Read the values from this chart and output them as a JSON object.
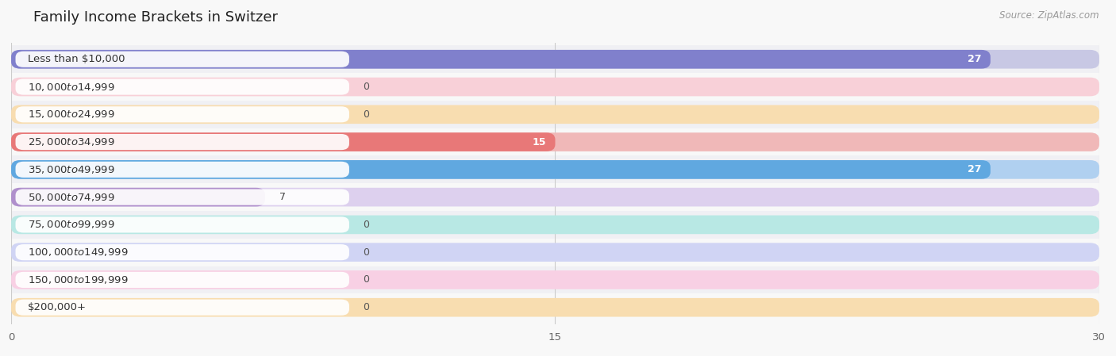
{
  "title": "Family Income Brackets in Switzer",
  "source": "Source: ZipAtlas.com",
  "categories": [
    "Less than $10,000",
    "$10,000 to $14,999",
    "$15,000 to $24,999",
    "$25,000 to $34,999",
    "$35,000 to $49,999",
    "$50,000 to $74,999",
    "$75,000 to $99,999",
    "$100,000 to $149,999",
    "$150,000 to $199,999",
    "$200,000+"
  ],
  "values": [
    27,
    0,
    0,
    15,
    27,
    7,
    0,
    0,
    0,
    0
  ],
  "bar_colors": [
    "#8080cc",
    "#f09090",
    "#f0b870",
    "#e87878",
    "#60a8e0",
    "#b090cc",
    "#70c8c0",
    "#a0a8e8",
    "#f090b0",
    "#f0c078"
  ],
  "bar_bg_colors": [
    "#c8c8e4",
    "#f8d0d8",
    "#f8ddb0",
    "#f0b8b8",
    "#b0d0f0",
    "#ddd0ee",
    "#b8e8e4",
    "#d0d4f4",
    "#f8d0e4",
    "#f8ddb0"
  ],
  "xlim": [
    0,
    30
  ],
  "xticks": [
    0,
    15,
    30
  ],
  "background_color": "#f8f8f8",
  "row_bg_colors": [
    "#f0f0f4",
    "#f8f8f8"
  ],
  "title_fontsize": 13,
  "label_fontsize": 9.5,
  "value_fontsize": 9,
  "source_fontsize": 8.5
}
